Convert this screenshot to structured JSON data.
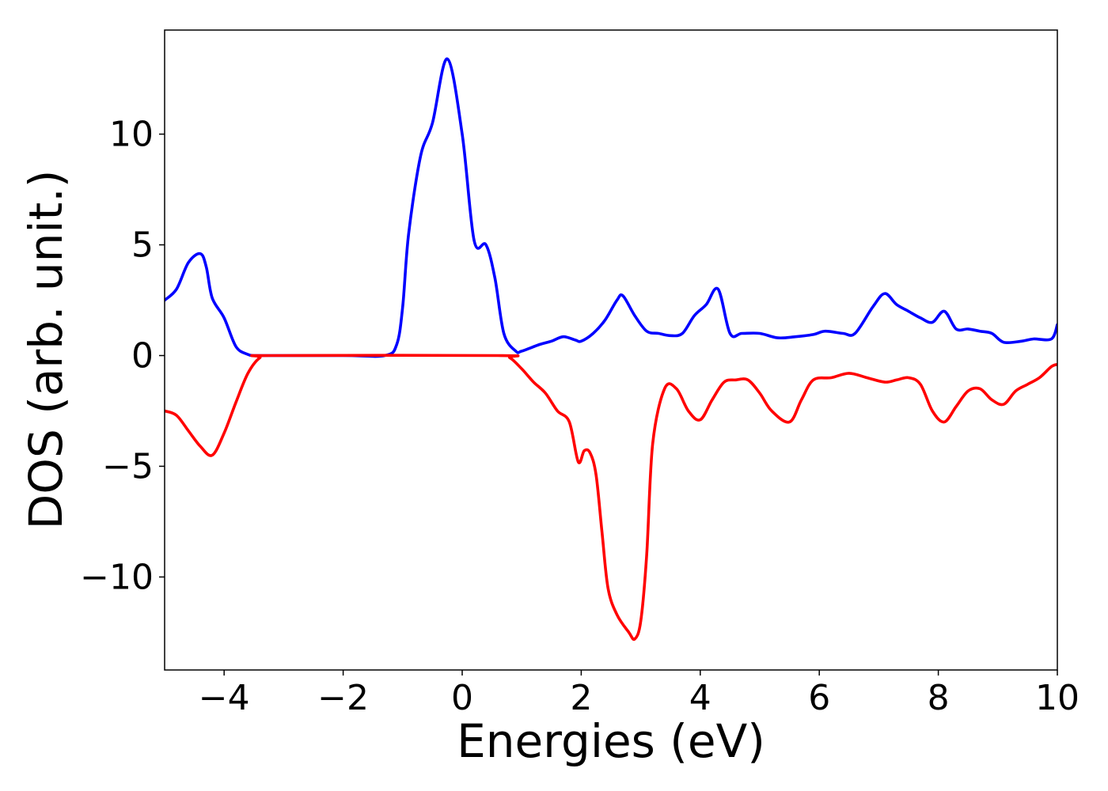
{
  "chart_data": {
    "type": "line",
    "title": "",
    "xlabel": "Energies (eV)",
    "ylabel": "DOS (arb. unit.)",
    "xlim": [
      -5,
      10
    ],
    "ylim": [
      -14.2,
      14.7
    ],
    "grid": false,
    "legend": "none",
    "xticks": [
      -4,
      -2,
      0,
      2,
      4,
      6,
      8,
      10
    ],
    "xtick_labels": [
      "−4",
      "−2",
      "0",
      "2",
      "4",
      "6",
      "8",
      "10"
    ],
    "yticks": [
      10,
      5,
      0,
      -5,
      -10
    ],
    "ytick_labels": [
      "10",
      "5",
      "0",
      "−5",
      "−10"
    ],
    "series": [
      {
        "color": "#0000ff",
        "x": [
          -5.0,
          -4.8,
          -4.6,
          -4.4,
          -4.3,
          -4.2,
          -4.0,
          -3.8,
          -3.6,
          -3.5,
          -3.4,
          -2.0,
          -1.3,
          -1.1,
          -1.0,
          -0.9,
          -0.7,
          -0.5,
          -0.25,
          0.0,
          0.2,
          0.4,
          0.55,
          0.7,
          0.9,
          1.0,
          1.3,
          1.5,
          1.7,
          1.9,
          2.0,
          2.2,
          2.4,
          2.6,
          2.7,
          2.9,
          3.1,
          3.3,
          3.5,
          3.7,
          3.9,
          4.1,
          4.3,
          4.5,
          4.7,
          5.0,
          5.3,
          5.6,
          5.9,
          6.1,
          6.4,
          6.6,
          6.9,
          7.1,
          7.3,
          7.5,
          7.7,
          7.9,
          8.1,
          8.3,
          8.5,
          8.7,
          8.9,
          9.1,
          9.4,
          9.6,
          9.9,
          10.0
        ],
        "y": [
          2.5,
          3.0,
          4.2,
          4.6,
          4.0,
          2.6,
          1.7,
          0.4,
          0.05,
          0.0,
          0.0,
          0.0,
          0.0,
          0.5,
          2.2,
          5.5,
          9.0,
          10.5,
          13.4,
          10.0,
          5.2,
          5.0,
          3.5,
          1.0,
          0.2,
          0.2,
          0.5,
          0.65,
          0.85,
          0.7,
          0.65,
          1.0,
          1.6,
          2.5,
          2.7,
          1.8,
          1.1,
          1.0,
          0.9,
          1.0,
          1.8,
          2.3,
          3.0,
          1.0,
          1.0,
          1.0,
          0.8,
          0.85,
          0.95,
          1.1,
          1.0,
          1.0,
          2.2,
          2.8,
          2.3,
          2.0,
          1.7,
          1.5,
          2.0,
          1.2,
          1.2,
          1.1,
          1.0,
          0.6,
          0.65,
          0.75,
          0.75,
          1.4
        ]
      },
      {
        "color": "#ff0000",
        "x": [
          -5.0,
          -4.8,
          -4.6,
          -4.4,
          -4.2,
          -4.0,
          -3.8,
          -3.6,
          -3.4,
          -3.2,
          0.6,
          0.8,
          1.0,
          1.2,
          1.4,
          1.6,
          1.8,
          1.95,
          2.05,
          2.15,
          2.25,
          2.35,
          2.45,
          2.6,
          2.8,
          2.9,
          3.0,
          3.1,
          3.2,
          3.4,
          3.6,
          3.8,
          4.0,
          4.2,
          4.4,
          4.6,
          4.8,
          5.0,
          5.2,
          5.5,
          5.7,
          5.9,
          6.2,
          6.5,
          6.8,
          7.1,
          7.3,
          7.5,
          7.7,
          7.9,
          8.1,
          8.3,
          8.5,
          8.7,
          8.9,
          9.1,
          9.3,
          9.5,
          9.7,
          9.9,
          10.0
        ],
        "y": [
          -2.5,
          -2.7,
          -3.4,
          -4.1,
          -4.5,
          -3.5,
          -2.1,
          -0.8,
          -0.1,
          0.0,
          0.0,
          -0.1,
          -0.6,
          -1.2,
          -1.7,
          -2.5,
          -3.0,
          -4.8,
          -4.3,
          -4.4,
          -5.4,
          -8.0,
          -10.5,
          -11.7,
          -12.5,
          -12.8,
          -12.0,
          -9.0,
          -4.0,
          -1.5,
          -1.5,
          -2.5,
          -2.9,
          -2.0,
          -1.2,
          -1.1,
          -1.1,
          -1.7,
          -2.5,
          -3.0,
          -2.0,
          -1.1,
          -1.0,
          -0.8,
          -1.0,
          -1.2,
          -1.1,
          -1.0,
          -1.3,
          -2.5,
          -3.0,
          -2.3,
          -1.6,
          -1.5,
          -2.0,
          -2.2,
          -1.6,
          -1.3,
          -1.0,
          -0.5,
          -0.4
        ]
      }
    ]
  }
}
